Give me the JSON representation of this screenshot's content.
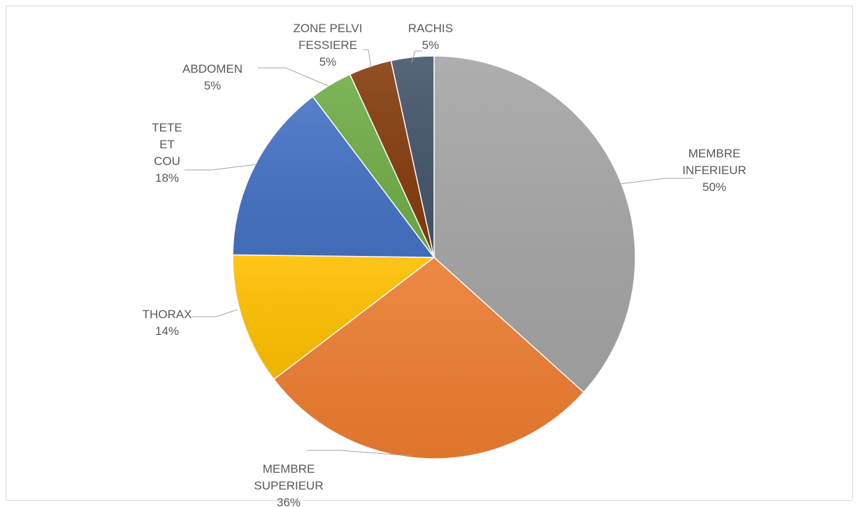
{
  "chart_data": {
    "type": "pie",
    "title": "",
    "start": "12 o'clock, clockwise",
    "slices": [
      {
        "name": "MEMBRE INFERIEUR",
        "value": 50,
        "value_label": "50%",
        "color": "#a5a5a5",
        "label_lines": [
          "MEMBRE",
          "INFERIEUR"
        ]
      },
      {
        "name": "MEMBRE SUPERIEUR",
        "value": 36,
        "value_label": "36%",
        "color": "#ed7d31",
        "label_lines": [
          "MEMBRE",
          "SUPERIEUR"
        ]
      },
      {
        "name": "THORAX",
        "value": 14,
        "value_label": "14%",
        "color": "#ffc000",
        "label_lines": [
          "THORAX"
        ]
      },
      {
        "name": "TETE ET COU",
        "value": 18,
        "value_label": "18%",
        "color": "#4472c4",
        "label_lines": [
          "TETE",
          "ET",
          "COU"
        ]
      },
      {
        "name": "ABDOMEN",
        "value": 5,
        "value_label": "5%",
        "color": "#70ad47",
        "label_lines": [
          "ABDOMEN"
        ]
      },
      {
        "name": "ZONE PELVI FESSIERE",
        "value": 5,
        "value_label": "5%",
        "color": "#843c0c",
        "label_lines": [
          "ZONE PELVI",
          "FESSIERE"
        ]
      },
      {
        "name": "RACHIS",
        "value": 5,
        "value_label": "5%",
        "color": "#44546a",
        "label_lines": [
          "RACHIS"
        ]
      }
    ]
  }
}
